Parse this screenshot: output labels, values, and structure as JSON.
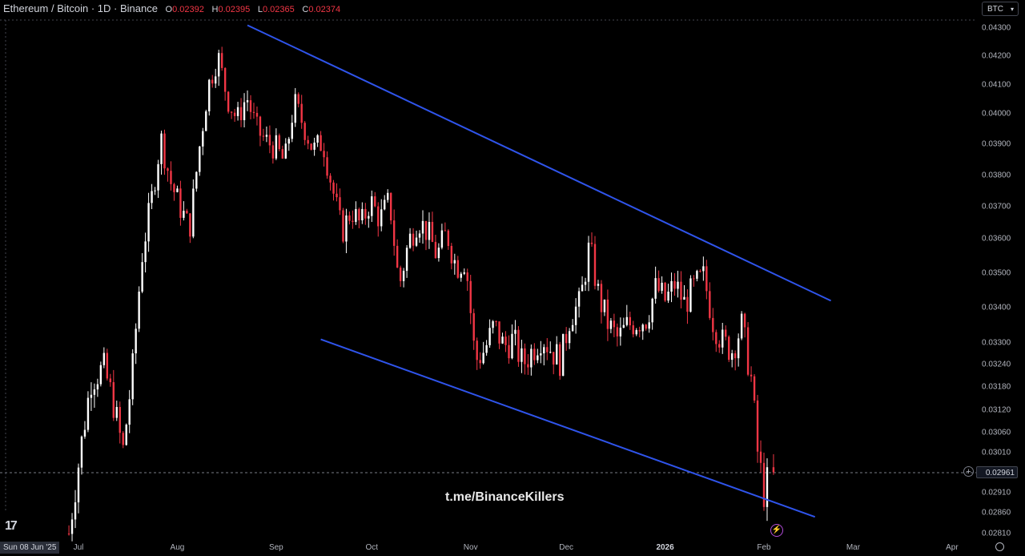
{
  "header": {
    "symbol": "Ethereum / Bitcoin · 1D · Binance",
    "o_label": "O",
    "o_value": "0.02392",
    "h_label": "H",
    "h_value": "0.02395",
    "l_label": "L",
    "l_value": "0.02365",
    "c_label": "C",
    "c_value": "0.02374"
  },
  "currency_button": "BTC",
  "date_badge": "Sun 08 Jun '25",
  "watermark": "t.me/BinanceKillers",
  "last_price": "0.02961",
  "colors": {
    "up": "#ffffff",
    "down": "#f23645",
    "trendline": "#2f54eb",
    "background": "#000000"
  },
  "chart_data": {
    "type": "candlestick",
    "title": "Ethereum / Bitcoin · 1D · Binance",
    "y_ticks": [
      "0.04300",
      "0.04200",
      "0.04100",
      "0.04000",
      "0.03900",
      "0.03800",
      "0.03700",
      "0.03600",
      "0.03500",
      "0.03400",
      "0.03300",
      "0.03240",
      "0.03180",
      "0.03120",
      "0.03060",
      "0.03010",
      "0.02910",
      "0.02860",
      "0.02810"
    ],
    "x_ticks": [
      {
        "label": "Jul",
        "bold": false
      },
      {
        "label": "Aug",
        "bold": false
      },
      {
        "label": "Sep",
        "bold": false
      },
      {
        "label": "Oct",
        "bold": false
      },
      {
        "label": "Nov",
        "bold": false
      },
      {
        "label": "Dec",
        "bold": false
      },
      {
        "label": "2026",
        "bold": true
      },
      {
        "label": "Feb",
        "bold": false
      },
      {
        "label": "Mar",
        "bold": false
      },
      {
        "label": "Apr",
        "bold": false
      }
    ],
    "close_path": [
      [
        "2025-06-28",
        0.0281
      ],
      [
        "2025-07-01",
        0.0298
      ],
      [
        "2025-07-05",
        0.032
      ],
      [
        "2025-07-09",
        0.0323
      ],
      [
        "2025-07-12",
        0.0314
      ],
      [
        "2025-07-15",
        0.0301
      ],
      [
        "2025-07-18",
        0.0322
      ],
      [
        "2025-07-21",
        0.0355
      ],
      [
        "2025-07-24",
        0.0372
      ],
      [
        "2025-07-27",
        0.0392
      ],
      [
        "2025-07-30",
        0.0378
      ],
      [
        "2025-08-02",
        0.037
      ],
      [
        "2025-08-05",
        0.0363
      ],
      [
        "2025-08-08",
        0.0388
      ],
      [
        "2025-08-11",
        0.041
      ],
      [
        "2025-08-14",
        0.042
      ],
      [
        "2025-08-17",
        0.0405
      ],
      [
        "2025-08-20",
        0.0398
      ],
      [
        "2025-08-23",
        0.0406
      ],
      [
        "2025-08-26",
        0.0395
      ],
      [
        "2025-08-29",
        0.0391
      ],
      [
        "2025-09-01",
        0.0389
      ],
      [
        "2025-09-04",
        0.0384
      ],
      [
        "2025-09-07",
        0.0404
      ],
      [
        "2025-09-10",
        0.0396
      ],
      [
        "2025-09-13",
        0.0388
      ],
      [
        "2025-09-16",
        0.0391
      ],
      [
        "2025-09-19",
        0.0376
      ],
      [
        "2025-09-22",
        0.0362
      ],
      [
        "2025-09-25",
        0.0369
      ],
      [
        "2025-09-28",
        0.0364
      ],
      [
        "2025-10-01",
        0.0372
      ],
      [
        "2025-10-04",
        0.0366
      ],
      [
        "2025-10-07",
        0.0372
      ],
      [
        "2025-10-10",
        0.0346
      ],
      [
        "2025-10-13",
        0.0359
      ],
      [
        "2025-10-16",
        0.0366
      ],
      [
        "2025-10-19",
        0.0362
      ],
      [
        "2025-10-22",
        0.0355
      ],
      [
        "2025-10-25",
        0.0362
      ],
      [
        "2025-10-28",
        0.0352
      ],
      [
        "2025-10-31",
        0.0354
      ],
      [
        "2025-11-03",
        0.0325
      ],
      [
        "2025-11-06",
        0.0328
      ],
      [
        "2025-11-09",
        0.0335
      ],
      [
        "2025-11-12",
        0.0329
      ],
      [
        "2025-11-15",
        0.0331
      ],
      [
        "2025-11-18",
        0.0324
      ],
      [
        "2025-11-21",
        0.0328
      ],
      [
        "2025-11-24",
        0.0332
      ],
      [
        "2025-11-27",
        0.0328
      ],
      [
        "2025-11-30",
        0.0325
      ],
      [
        "2025-12-03",
        0.0338
      ],
      [
        "2025-12-06",
        0.0341
      ],
      [
        "2025-12-09",
        0.0358
      ],
      [
        "2025-12-12",
        0.0343
      ],
      [
        "2025-12-15",
        0.0335
      ],
      [
        "2025-12-18",
        0.0331
      ],
      [
        "2025-12-21",
        0.0335
      ],
      [
        "2025-12-24",
        0.0336
      ],
      [
        "2025-12-27",
        0.0337
      ],
      [
        "2025-12-30",
        0.0346
      ],
      [
        "2026-01-02",
        0.0342
      ],
      [
        "2026-01-05",
        0.0347
      ],
      [
        "2026-01-08",
        0.0341
      ],
      [
        "2026-01-11",
        0.0346
      ],
      [
        "2026-01-14",
        0.0349
      ],
      [
        "2026-01-17",
        0.0336
      ],
      [
        "2026-01-20",
        0.033
      ],
      [
        "2026-01-23",
        0.0328
      ],
      [
        "2026-01-26",
        0.0335
      ],
      [
        "2026-01-29",
        0.032
      ],
      [
        "2026-01-31",
        0.0301
      ],
      [
        "2026-02-02",
        0.0291
      ],
      [
        "2026-02-04",
        0.0296
      ]
    ],
    "candle_count": 221,
    "last_close": 0.02961,
    "current_price_line": 0.02961,
    "trendlines": [
      {
        "from": [
          "2025-08-23",
          0.0431
        ],
        "to": [
          "2026-02-22",
          0.0342
        ]
      },
      {
        "from": [
          "2025-09-15",
          0.0331
        ],
        "to": [
          "2026-02-17",
          0.0285
        ]
      }
    ],
    "ylim": [
      0.028,
      0.0433
    ],
    "grid": false
  }
}
